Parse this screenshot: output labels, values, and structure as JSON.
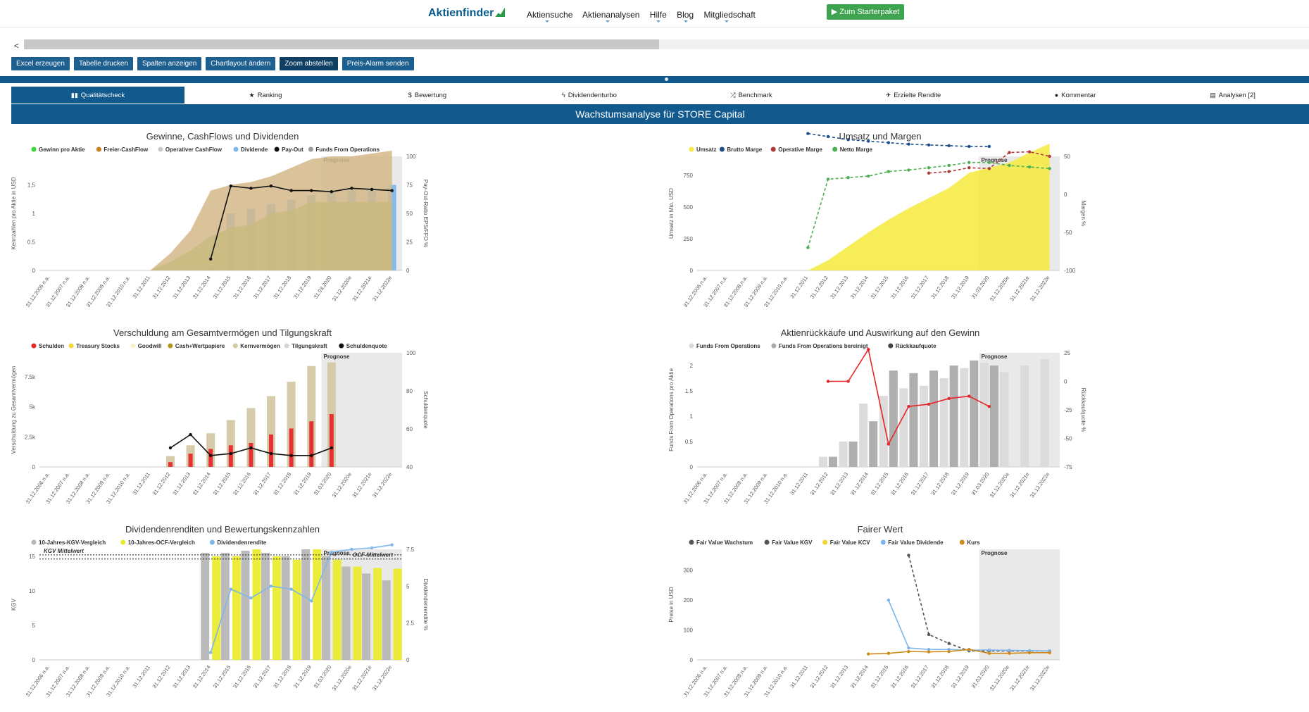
{
  "header": {
    "logo": "Aktienfinder",
    "nav": [
      "Aktiensuche",
      "Aktienanalysen",
      "Hilfe",
      "Blog",
      "Mitgliedschaft"
    ],
    "starter_button": "Zum Starterpaket"
  },
  "scroll": {
    "left_arrow": "<"
  },
  "toolbar": {
    "buttons": [
      "Excel erzeugen",
      "Tabelle drucken",
      "Spalten anzeigen",
      "Chartlayout ändern",
      "Zoom abstellen",
      "Preis-Alarm senden"
    ]
  },
  "tabs": [
    {
      "label": "Qualitätscheck",
      "icon": "bar-chart-icon",
      "active": true
    },
    {
      "label": "Ranking",
      "icon": "star-icon",
      "active": false
    },
    {
      "label": "Bewertung",
      "icon": "dollar-icon",
      "active": false
    },
    {
      "label": "Dividendenturbo",
      "icon": "bolt-icon",
      "active": false
    },
    {
      "label": "Benchmark",
      "icon": "shuffle-icon",
      "active": false
    },
    {
      "label": "Erzielte Rendite",
      "icon": "plane-icon",
      "active": false
    },
    {
      "label": "Kommentar",
      "icon": "comment-icon",
      "active": false
    },
    {
      "label": "Analysen [2]",
      "icon": "list-icon",
      "active": false
    }
  ],
  "section_title": "Wachstumsanalyse für STORE Capital",
  "colors": {
    "primary": "#125a8d",
    "button": "#1d5f8f",
    "starter": "#3fa44f",
    "forecast_bg": "#e3e3e3"
  },
  "x_labels": [
    "31.12.2006 n.a.",
    "31.12.2007 n.a.",
    "31.12.2008 n.a.",
    "31.12.2009 n.a.",
    "31.12.2010 n.a.",
    "31.12.2011",
    "31.12.2012",
    "31.12.2013",
    "31.12.2014",
    "31.12.2015",
    "31.12.2016",
    "31.12.2017",
    "31.12.2018",
    "31.12.2019",
    "31.03.2020",
    "31.12.2020e",
    "31.12.2021e",
    "31.12.2022e"
  ],
  "prognose_label": "Prognose",
  "chart_data": [
    {
      "id": "gewinne",
      "type": "bar",
      "title": "Gewinne, CashFlows und Dividenden",
      "ylabel": "Kennzahlen pro Aktie in USD",
      "y2label": "Pay-Out-Ratio EPS/FFO %",
      "yticks": [
        "0",
        "0.5",
        "1",
        "1.5"
      ],
      "y2ticks": [
        "0",
        "25",
        "50",
        "75",
        "100"
      ],
      "ylim": [
        0,
        2.0
      ],
      "legend": [
        {
          "name": "Gewinn pro Aktie",
          "color": "#39d63f"
        },
        {
          "name": "Freier-CashFlow",
          "color": "#c97e1a"
        },
        {
          "name": "Operativer CashFlow",
          "color": "#c9c9c9"
        },
        {
          "name": "Dividende",
          "color": "#7cb6ea"
        },
        {
          "name": "Pay-Out",
          "color": "#111111"
        },
        {
          "name": "Funds From Operations",
          "color": "#9b9b9b"
        }
      ],
      "series": [
        {
          "name": "Dividende",
          "values": [
            null,
            null,
            null,
            null,
            null,
            null,
            null,
            null,
            0.05,
            1.0,
            1.08,
            1.16,
            1.24,
            1.32,
            1.36,
            1.4,
            1.44,
            1.5
          ]
        },
        {
          "name": "Gewinn pro Aktie",
          "values": [
            null,
            null,
            null,
            null,
            null,
            0.0,
            0.15,
            0.35,
            0.6,
            0.75,
            0.8,
            1.0,
            1.05,
            1.2,
            1.2,
            1.2,
            1.2,
            1.2
          ]
        },
        {
          "name": "Funds From Operations",
          "values": [
            null,
            null,
            null,
            null,
            null,
            0.0,
            0.3,
            0.7,
            1.4,
            1.5,
            1.55,
            1.65,
            1.8,
            1.95,
            2.0,
            2.0,
            2.05,
            2.1
          ]
        },
        {
          "name": "Pay-Out",
          "values": [
            null,
            null,
            null,
            null,
            null,
            null,
            null,
            null,
            10,
            74,
            72,
            74,
            70,
            70,
            69,
            72,
            71,
            70
          ]
        }
      ]
    },
    {
      "id": "umsatz",
      "type": "area",
      "title": "Umsatz und Margen",
      "ylabel": "Umsatz in Mio. USD",
      "y2label": "Margen %",
      "yticks": [
        "0",
        "250",
        "500",
        "750"
      ],
      "y2ticks": [
        "-100",
        "-50",
        "0",
        "50"
      ],
      "ylim": [
        0,
        900
      ],
      "legend": [
        {
          "name": "Umsatz",
          "color": "#f6ea3b"
        },
        {
          "name": "Brutto Marge",
          "color": "#1d4f8c"
        },
        {
          "name": "Operative Marge",
          "color": "#b03a3a"
        },
        {
          "name": "Netto Marge",
          "color": "#4caf50"
        }
      ],
      "series": [
        {
          "name": "Umsatz",
          "values": [
            null,
            null,
            null,
            null,
            null,
            0,
            80,
            190,
            300,
            400,
            490,
            570,
            650,
            770,
            810,
            850,
            930,
            1000
          ]
        },
        {
          "name": "Brutto Marge",
          "values": [
            null,
            null,
            null,
            null,
            null,
            80,
            76,
            72,
            70,
            68,
            66,
            65,
            64,
            63,
            63,
            null,
            null,
            null
          ]
        },
        {
          "name": "Netto Marge",
          "values": [
            null,
            null,
            null,
            null,
            null,
            -70,
            20,
            22,
            24,
            30,
            32,
            35,
            38,
            42,
            42,
            38,
            36,
            34
          ]
        },
        {
          "name": "Operative Marge",
          "values": [
            null,
            null,
            null,
            null,
            null,
            null,
            null,
            null,
            null,
            null,
            null,
            28,
            30,
            35,
            34,
            55,
            56,
            50
          ]
        }
      ]
    },
    {
      "id": "verschuldung",
      "type": "bar",
      "title": "Verschuldung am Gesamtvermögen und Tilgungskraft",
      "ylabel": "Verschuldung zu Gesamtvermögen",
      "y2label": "Schuldenquote",
      "yticks": [
        "0",
        "2.5k",
        "5k",
        "7.5k"
      ],
      "y2ticks": [
        "40",
        "60",
        "80",
        "100"
      ],
      "ylim": [
        0,
        9500
      ],
      "legend": [
        {
          "name": "Schulden",
          "color": "#e8252a"
        },
        {
          "name": "Treasury Stocks",
          "color": "#f2d531"
        },
        {
          "name": "Goodwill",
          "color": "#f6f3c4"
        },
        {
          "name": "Cash+Wertpapiere",
          "color": "#b39a14"
        },
        {
          "name": "Kernvermögen",
          "color": "#d3c8a4"
        },
        {
          "name": "Tilgungskraft",
          "color": "#d6d6d6"
        },
        {
          "name": "Schuldenquote",
          "color": "#111111"
        }
      ],
      "series": [
        {
          "name": "Kernvermögen",
          "values": [
            null,
            null,
            null,
            null,
            null,
            null,
            900,
            1800,
            2800,
            3900,
            4900,
            5900,
            7100,
            8400,
            8700,
            null,
            null,
            null
          ]
        },
        {
          "name": "Schulden",
          "values": [
            null,
            null,
            null,
            null,
            null,
            null,
            400,
            1100,
            1500,
            1800,
            2000,
            2700,
            3200,
            3800,
            4400,
            null,
            null,
            null
          ]
        },
        {
          "name": "Schuldenquote",
          "values": [
            null,
            null,
            null,
            null,
            null,
            null,
            50,
            57,
            46,
            47,
            50,
            47,
            46,
            46,
            50,
            null,
            null,
            null
          ]
        }
      ]
    },
    {
      "id": "aktienrueckkauf",
      "type": "bar",
      "title": "Aktienrückkäufe und Auswirkung auf den Gewinn",
      "ylabel": "Funds From Operations pro Aktie",
      "y2label": "Rückkaufquote %",
      "yticks": [
        "0",
        "0.5",
        "1",
        "1.5",
        "2"
      ],
      "y2ticks": [
        "-75",
        "-50",
        "-25",
        "0",
        "25"
      ],
      "ylim": [
        0,
        2.25
      ],
      "legend": [
        {
          "name": "Funds From Operations",
          "color": "#d9d9d9"
        },
        {
          "name": "Funds From Operations bereinigt",
          "color": "#a8a8a8"
        },
        {
          "name": "Rückkaufquote",
          "color": "#444444"
        }
      ],
      "series": [
        {
          "name": "Funds From Operations",
          "values": [
            null,
            null,
            null,
            null,
            null,
            null,
            0.2,
            0.5,
            1.25,
            1.4,
            1.55,
            1.6,
            1.75,
            1.95,
            2.05,
            1.87,
            2.0,
            2.12
          ]
        },
        {
          "name": "Funds From Operations bereinigt",
          "values": [
            null,
            null,
            null,
            null,
            null,
            null,
            0.2,
            0.5,
            0.9,
            1.9,
            1.85,
            1.9,
            2.0,
            2.1,
            2.0,
            null,
            null,
            null
          ]
        },
        {
          "name": "Rückkaufquote",
          "values": [
            null,
            null,
            null,
            null,
            null,
            null,
            0,
            0,
            28,
            -55,
            -22,
            -20,
            -15,
            -13,
            -22,
            null,
            null,
            null
          ]
        }
      ]
    },
    {
      "id": "dividendenrendite",
      "type": "bar",
      "title": "Dividendenrenditen und Bewertungskennzahlen",
      "ylabel": "KGV",
      "y2label": "Dividendenrendite %",
      "yticks": [
        "0",
        "5",
        "10",
        "15"
      ],
      "y2ticks": [
        "0",
        "2.5",
        "5",
        "7.5"
      ],
      "ylim": [
        0,
        16
      ],
      "annotations": [
        "KGV Mittelwert",
        "OCF-Mittelwert"
      ],
      "legend": [
        {
          "name": "10-Jahres-KGV-Vergleich",
          "color": "#b5b5b5"
        },
        {
          "name": "10-Jahres-OCF-Vergleich",
          "color": "#eaea2a"
        },
        {
          "name": "Dividendenrendite",
          "color": "#7cb6ea"
        }
      ],
      "series": [
        {
          "name": "10-Jahres-KGV-Vergleich",
          "values": [
            null,
            null,
            null,
            null,
            null,
            null,
            null,
            null,
            15.5,
            15.5,
            15.8,
            15.5,
            15.0,
            16.0,
            15.0,
            13.5,
            12.5,
            11.5
          ]
        },
        {
          "name": "10-Jahres-OCF-Vergleich",
          "values": [
            null,
            null,
            null,
            null,
            null,
            null,
            null,
            null,
            15.0,
            15.0,
            16.0,
            15.0,
            14.5,
            16.0,
            14.5,
            13.5,
            13.3,
            13.2
          ]
        },
        {
          "name": "Dividendenrendite",
          "values": [
            null,
            null,
            null,
            null,
            null,
            null,
            null,
            null,
            0.5,
            4.8,
            4.2,
            5.0,
            4.8,
            4.0,
            7.3,
            7.5,
            7.6,
            7.8
          ]
        }
      ]
    },
    {
      "id": "fairer-wert",
      "type": "line",
      "title": "Fairer Wert",
      "ylabel": "Preise in USD",
      "yticks": [
        "0",
        "100",
        "200",
        "300"
      ],
      "ylim": [
        0,
        370
      ],
      "legend": [
        {
          "name": "Fair Value Wachstum",
          "color": "#555555"
        },
        {
          "name": "Fair Value KGV",
          "color": "#555555"
        },
        {
          "name": "Fair Value KCV",
          "color": "#f2d531"
        },
        {
          "name": "Fair Value Dividende",
          "color": "#7cb6ea"
        },
        {
          "name": "Kurs",
          "color": "#d08a1a"
        }
      ],
      "series": [
        {
          "name": "Fair Value Wachstum",
          "values": [
            null,
            null,
            null,
            null,
            null,
            null,
            null,
            null,
            null,
            null,
            350,
            85,
            55,
            30,
            30,
            30,
            30,
            30
          ]
        },
        {
          "name": "Fair Value Dividende",
          "values": [
            null,
            null,
            null,
            null,
            null,
            null,
            null,
            null,
            null,
            200,
            40,
            35,
            35,
            33,
            33,
            32,
            31,
            30
          ]
        },
        {
          "name": "Kurs",
          "values": [
            null,
            null,
            null,
            null,
            null,
            null,
            null,
            null,
            20,
            22,
            28,
            27,
            28,
            35,
            22,
            22,
            24,
            24
          ]
        }
      ]
    }
  ]
}
